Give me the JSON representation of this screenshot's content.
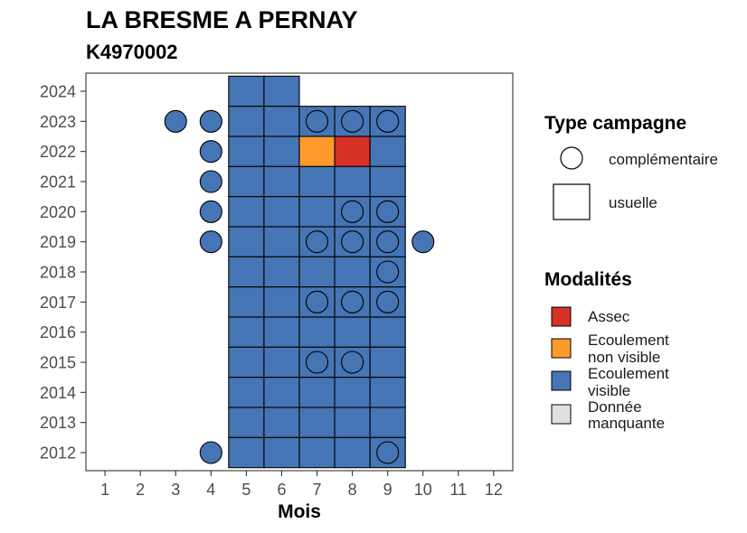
{
  "chart_data": {
    "type": "heatmap",
    "title": "LA BRESME A PERNAY",
    "subtitle": "K4970002",
    "xlabel": "Mois",
    "x_ticks": [
      1,
      2,
      3,
      4,
      5,
      6,
      7,
      8,
      9,
      10,
      11,
      12
    ],
    "y_ticks": [
      2012,
      2013,
      2014,
      2015,
      2016,
      2017,
      2018,
      2019,
      2020,
      2021,
      2022,
      2023,
      2024
    ],
    "xlim": [
      0.46,
      12.54
    ],
    "ylim": [
      2011.4,
      2024.6
    ],
    "grid": false,
    "legend_position": "right",
    "legend_shape": {
      "title": "Type campagne",
      "entries": [
        {
          "label": "complémentaire",
          "marker": "circle"
        },
        {
          "label": "usuelle",
          "marker": "square"
        }
      ]
    },
    "legend_fill": {
      "title": "Modalités",
      "entries": [
        {
          "lines": [
            "Assec"
          ],
          "color": "#d73027"
        },
        {
          "lines": [
            "Ecoulement",
            "non visible"
          ],
          "color": "#fd9a2b"
        },
        {
          "lines": [
            "Ecoulement",
            "visible"
          ],
          "color": "#4575b4"
        },
        {
          "lines": [
            "Donnée",
            "manquante"
          ],
          "color": "#e0e0e0"
        }
      ]
    },
    "usuelle": [
      {
        "month": 5,
        "year": 2024,
        "modality": 2
      },
      {
        "month": 6,
        "year": 2024,
        "modality": 2
      },
      {
        "month": 5,
        "year": 2023,
        "modality": 2
      },
      {
        "month": 6,
        "year": 2023,
        "modality": 2
      },
      {
        "month": 7,
        "year": 2023,
        "modality": 2
      },
      {
        "month": 8,
        "year": 2023,
        "modality": 2
      },
      {
        "month": 9,
        "year": 2023,
        "modality": 2
      },
      {
        "month": 5,
        "year": 2022,
        "modality": 2
      },
      {
        "month": 6,
        "year": 2022,
        "modality": 2
      },
      {
        "month": 7,
        "year": 2022,
        "modality": 1
      },
      {
        "month": 8,
        "year": 2022,
        "modality": 0
      },
      {
        "month": 9,
        "year": 2022,
        "modality": 2
      },
      {
        "month": 5,
        "year": 2021,
        "modality": 2
      },
      {
        "month": 6,
        "year": 2021,
        "modality": 2
      },
      {
        "month": 7,
        "year": 2021,
        "modality": 2
      },
      {
        "month": 8,
        "year": 2021,
        "modality": 2
      },
      {
        "month": 9,
        "year": 2021,
        "modality": 2
      },
      {
        "month": 5,
        "year": 2020,
        "modality": 2
      },
      {
        "month": 6,
        "year": 2020,
        "modality": 2
      },
      {
        "month": 7,
        "year": 2020,
        "modality": 2
      },
      {
        "month": 8,
        "year": 2020,
        "modality": 2
      },
      {
        "month": 9,
        "year": 2020,
        "modality": 2
      },
      {
        "month": 5,
        "year": 2019,
        "modality": 2
      },
      {
        "month": 6,
        "year": 2019,
        "modality": 2
      },
      {
        "month": 7,
        "year": 2019,
        "modality": 2
      },
      {
        "month": 8,
        "year": 2019,
        "modality": 2
      },
      {
        "month": 9,
        "year": 2019,
        "modality": 2
      },
      {
        "month": 5,
        "year": 2018,
        "modality": 2
      },
      {
        "month": 6,
        "year": 2018,
        "modality": 2
      },
      {
        "month": 7,
        "year": 2018,
        "modality": 2
      },
      {
        "month": 8,
        "year": 2018,
        "modality": 2
      },
      {
        "month": 9,
        "year": 2018,
        "modality": 2
      },
      {
        "month": 5,
        "year": 2017,
        "modality": 2
      },
      {
        "month": 6,
        "year": 2017,
        "modality": 2
      },
      {
        "month": 7,
        "year": 2017,
        "modality": 2
      },
      {
        "month": 8,
        "year": 2017,
        "modality": 2
      },
      {
        "month": 9,
        "year": 2017,
        "modality": 2
      },
      {
        "month": 5,
        "year": 2016,
        "modality": 2
      },
      {
        "month": 6,
        "year": 2016,
        "modality": 2
      },
      {
        "month": 7,
        "year": 2016,
        "modality": 2
      },
      {
        "month": 8,
        "year": 2016,
        "modality": 2
      },
      {
        "month": 9,
        "year": 2016,
        "modality": 2
      },
      {
        "month": 5,
        "year": 2015,
        "modality": 2
      },
      {
        "month": 6,
        "year": 2015,
        "modality": 2
      },
      {
        "month": 7,
        "year": 2015,
        "modality": 2
      },
      {
        "month": 8,
        "year": 2015,
        "modality": 2
      },
      {
        "month": 9,
        "year": 2015,
        "modality": 2
      },
      {
        "month": 5,
        "year": 2014,
        "modality": 2
      },
      {
        "month": 6,
        "year": 2014,
        "modality": 2
      },
      {
        "month": 7,
        "year": 2014,
        "modality": 2
      },
      {
        "month": 8,
        "year": 2014,
        "modality": 2
      },
      {
        "month": 9,
        "year": 2014,
        "modality": 2
      },
      {
        "month": 5,
        "year": 2013,
        "modality": 2
      },
      {
        "month": 6,
        "year": 2013,
        "modality": 2
      },
      {
        "month": 7,
        "year": 2013,
        "modality": 2
      },
      {
        "month": 8,
        "year": 2013,
        "modality": 2
      },
      {
        "month": 9,
        "year": 2013,
        "modality": 2
      },
      {
        "month": 5,
        "year": 2012,
        "modality": 2
      },
      {
        "month": 6,
        "year": 2012,
        "modality": 2
      },
      {
        "month": 7,
        "year": 2012,
        "modality": 2
      },
      {
        "month": 8,
        "year": 2012,
        "modality": 2
      },
      {
        "month": 9,
        "year": 2012,
        "modality": 2
      }
    ],
    "complementaire": [
      {
        "month": 3,
        "year": 2023,
        "modality": 2
      },
      {
        "month": 4,
        "year": 2023,
        "modality": 2
      },
      {
        "month": 7,
        "year": 2023,
        "modality": 2
      },
      {
        "month": 8,
        "year": 2023,
        "modality": 2
      },
      {
        "month": 9,
        "year": 2023,
        "modality": 2
      },
      {
        "month": 4,
        "year": 2022,
        "modality": 2
      },
      {
        "month": 4,
        "year": 2021,
        "modality": 2
      },
      {
        "month": 4,
        "year": 2020,
        "modality": 2
      },
      {
        "month": 8,
        "year": 2020,
        "modality": 2
      },
      {
        "month": 9,
        "year": 2020,
        "modality": 2
      },
      {
        "month": 4,
        "year": 2019,
        "modality": 2
      },
      {
        "month": 7,
        "year": 2019,
        "modality": 2
      },
      {
        "month": 8,
        "year": 2019,
        "modality": 2
      },
      {
        "month": 9,
        "year": 2019,
        "modality": 2
      },
      {
        "month": 10,
        "year": 2019,
        "modality": 2
      },
      {
        "month": 9,
        "year": 2018,
        "modality": 2
      },
      {
        "month": 7,
        "year": 2017,
        "modality": 2
      },
      {
        "month": 8,
        "year": 2017,
        "modality": 2
      },
      {
        "month": 9,
        "year": 2017,
        "modality": 2
      },
      {
        "month": 7,
        "year": 2015,
        "modality": 2
      },
      {
        "month": 8,
        "year": 2015,
        "modality": 2
      },
      {
        "month": 4,
        "year": 2012,
        "modality": 2
      },
      {
        "month": 9,
        "year": 2012,
        "modality": 2
      }
    ]
  }
}
